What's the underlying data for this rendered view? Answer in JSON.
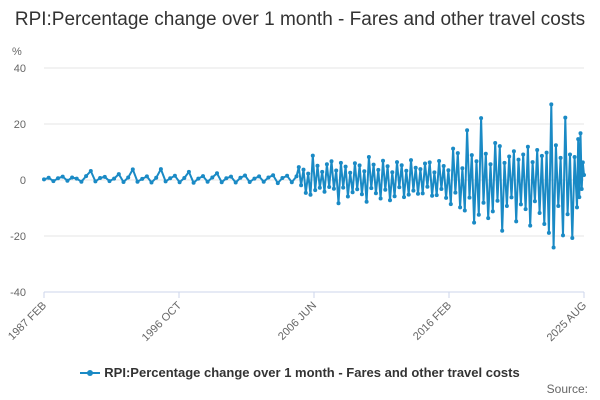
{
  "chart_data": {
    "type": "line",
    "title": "RPI:Percentage change over 1 month - Fares and other travel costs",
    "ylabel": "%",
    "xlabel": "",
    "ylim": [
      -40,
      40
    ],
    "y_ticks": [
      "40",
      "20",
      "0",
      "-20",
      "-40"
    ],
    "x_tick_labels": [
      "1987 FEB",
      "1996 OCT",
      "2006 JUN",
      "2016 FEB",
      "2025 AUG"
    ],
    "xlim": [
      "1987-02",
      "2025-08"
    ],
    "grid": "horizontal",
    "legend_position": "bottom",
    "colors": {
      "series": "#1a8ac5",
      "grid": "#e6e6e6",
      "axis": "#ccd6eb"
    },
    "source_label": "Source:",
    "series": [
      {
        "name": "RPI:Percentage change over 1 month - Fares and other travel costs",
        "points": [
          [
            "1987-02",
            0.2
          ],
          [
            "1987-06",
            0.8
          ],
          [
            "1987-10",
            -0.4
          ],
          [
            "1988-02",
            0.6
          ],
          [
            "1988-06",
            1.2
          ],
          [
            "1988-10",
            -0.3
          ],
          [
            "1989-02",
            0.9
          ],
          [
            "1989-06",
            0.5
          ],
          [
            "1989-10",
            -0.6
          ],
          [
            "1990-02",
            1.4
          ],
          [
            "1990-06",
            3.2
          ],
          [
            "1990-10",
            -0.5
          ],
          [
            "1991-02",
            0.7
          ],
          [
            "1991-06",
            1.1
          ],
          [
            "1991-10",
            -0.4
          ],
          [
            "1992-02",
            0.5
          ],
          [
            "1992-06",
            2.1
          ],
          [
            "1992-10",
            -0.7
          ],
          [
            "1993-02",
            0.9
          ],
          [
            "1993-06",
            3.8
          ],
          [
            "1993-10",
            -0.6
          ],
          [
            "1994-02",
            0.4
          ],
          [
            "1994-06",
            1.3
          ],
          [
            "1994-10",
            -0.9
          ],
          [
            "1995-02",
            0.8
          ],
          [
            "1995-06",
            3.9
          ],
          [
            "1995-10",
            -0.5
          ],
          [
            "1996-02",
            0.6
          ],
          [
            "1996-06",
            1.5
          ],
          [
            "1996-10",
            -0.8
          ],
          [
            "1997-02",
            0.7
          ],
          [
            "1997-06",
            2.9
          ],
          [
            "1997-10",
            -1.0
          ],
          [
            "1998-02",
            0.5
          ],
          [
            "1998-06",
            1.4
          ],
          [
            "1998-10",
            -0.6
          ],
          [
            "1999-02",
            0.9
          ],
          [
            "1999-06",
            2.4
          ],
          [
            "1999-10",
            -0.8
          ],
          [
            "2000-02",
            0.6
          ],
          [
            "2000-06",
            1.2
          ],
          [
            "2000-10",
            -0.9
          ],
          [
            "2001-02",
            0.8
          ],
          [
            "2001-06",
            1.6
          ],
          [
            "2001-10",
            -0.7
          ],
          [
            "2002-02",
            0.5
          ],
          [
            "2002-06",
            1.3
          ],
          [
            "2002-10",
            -0.6
          ],
          [
            "2003-02",
            0.9
          ],
          [
            "2003-06",
            1.7
          ],
          [
            "2003-10",
            -1.1
          ],
          [
            "2004-02",
            0.7
          ],
          [
            "2004-06",
            1.5
          ],
          [
            "2004-10",
            -0.8
          ],
          [
            "2005-02",
            1.3
          ],
          [
            "2005-04",
            4.6
          ],
          [
            "2005-06",
            -1.9
          ],
          [
            "2005-08",
            3.7
          ],
          [
            "2005-10",
            -4.6
          ],
          [
            "2005-12",
            2.3
          ],
          [
            "2006-02",
            -5.3
          ],
          [
            "2006-04",
            8.7
          ],
          [
            "2006-06",
            -3.6
          ],
          [
            "2006-08",
            5.1
          ],
          [
            "2006-10",
            -2.8
          ],
          [
            "2006-12",
            2.9
          ],
          [
            "2007-02",
            -4.2
          ],
          [
            "2007-04",
            5.6
          ],
          [
            "2007-06",
            -2.5
          ],
          [
            "2007-08",
            6.7
          ],
          [
            "2007-10",
            -3.1
          ],
          [
            "2007-12",
            3.4
          ],
          [
            "2008-02",
            -8.3
          ],
          [
            "2008-04",
            6.1
          ],
          [
            "2008-06",
            -2.7
          ],
          [
            "2008-08",
            4.8
          ],
          [
            "2008-10",
            -5.9
          ],
          [
            "2008-12",
            2.6
          ],
          [
            "2009-02",
            -4.4
          ],
          [
            "2009-04",
            6.0
          ],
          [
            "2009-06",
            -3.3
          ],
          [
            "2009-08",
            5.2
          ],
          [
            "2009-10",
            -5.1
          ],
          [
            "2009-12",
            3.1
          ],
          [
            "2010-02",
            -7.8
          ],
          [
            "2010-04",
            8.2
          ],
          [
            "2010-06",
            -2.9
          ],
          [
            "2010-08",
            5.5
          ],
          [
            "2010-10",
            -4.7
          ],
          [
            "2010-12",
            3.6
          ],
          [
            "2011-02",
            -6.6
          ],
          [
            "2011-04",
            6.9
          ],
          [
            "2011-06",
            -3.5
          ],
          [
            "2011-08",
            4.9
          ],
          [
            "2011-10",
            -7.2
          ],
          [
            "2011-12",
            2.8
          ],
          [
            "2012-02",
            -5.8
          ],
          [
            "2012-04",
            6.4
          ],
          [
            "2012-06",
            -2.6
          ],
          [
            "2012-08",
            5.3
          ],
          [
            "2012-10",
            -6.1
          ],
          [
            "2012-12",
            3.3
          ],
          [
            "2013-02",
            -5.2
          ],
          [
            "2013-04",
            7.1
          ],
          [
            "2013-06",
            -3.8
          ],
          [
            "2013-08",
            4.4
          ],
          [
            "2013-10",
            -4.9
          ],
          [
            "2013-12",
            3.9
          ],
          [
            "2014-02",
            -4.8
          ],
          [
            "2014-04",
            5.9
          ],
          [
            "2014-06",
            -2.4
          ],
          [
            "2014-08",
            6.3
          ],
          [
            "2014-10",
            -5.6
          ],
          [
            "2014-12",
            2.7
          ],
          [
            "2015-02",
            -5.4
          ],
          [
            "2015-04",
            6.8
          ],
          [
            "2015-06",
            -3.2
          ],
          [
            "2015-08",
            5.0
          ],
          [
            "2015-10",
            -6.4
          ],
          [
            "2015-12",
            3.5
          ],
          [
            "2016-02",
            -8.6
          ],
          [
            "2016-04",
            11.2
          ],
          [
            "2016-06",
            -4.5
          ],
          [
            "2016-08",
            9.6
          ],
          [
            "2016-10",
            -9.8
          ],
          [
            "2016-12",
            4.2
          ],
          [
            "2017-02",
            -10.9
          ],
          [
            "2017-04",
            17.8
          ],
          [
            "2017-06",
            -6.3
          ],
          [
            "2017-08",
            8.9
          ],
          [
            "2017-10",
            -15.2
          ],
          [
            "2017-12",
            6.7
          ],
          [
            "2018-02",
            -12.4
          ],
          [
            "2018-04",
            22.1
          ],
          [
            "2018-06",
            -8.1
          ],
          [
            "2018-08",
            9.4
          ],
          [
            "2018-10",
            -13.6
          ],
          [
            "2018-12",
            5.6
          ],
          [
            "2019-02",
            -11.2
          ],
          [
            "2019-04",
            13.2
          ],
          [
            "2019-06",
            -7.4
          ],
          [
            "2019-08",
            12.1
          ],
          [
            "2019-10",
            -18.1
          ],
          [
            "2019-12",
            6.1
          ],
          [
            "2020-02",
            -9.3
          ],
          [
            "2020-04",
            8.4
          ],
          [
            "2020-06",
            -6.2
          ],
          [
            "2020-08",
            10.3
          ],
          [
            "2020-10",
            -14.8
          ],
          [
            "2020-12",
            7.3
          ],
          [
            "2021-02",
            -8.7
          ],
          [
            "2021-04",
            9.1
          ],
          [
            "2021-06",
            -10.4
          ],
          [
            "2021-08",
            11.9
          ],
          [
            "2021-10",
            -16.3
          ],
          [
            "2021-12",
            6.4
          ],
          [
            "2022-02",
            -7.6
          ],
          [
            "2022-04",
            10.7
          ],
          [
            "2022-06",
            -11.8
          ],
          [
            "2022-08",
            8.6
          ],
          [
            "2022-10",
            -15.7
          ],
          [
            "2022-12",
            9.8
          ],
          [
            "2023-02",
            -18.9
          ],
          [
            "2023-04",
            27.0
          ],
          [
            "2023-06",
            -24.1
          ],
          [
            "2023-08",
            12.4
          ],
          [
            "2023-10",
            -9.3
          ],
          [
            "2023-12",
            7.9
          ],
          [
            "2024-02",
            -19.8
          ],
          [
            "2024-04",
            22.3
          ],
          [
            "2024-06",
            -12.2
          ],
          [
            "2024-08",
            9.1
          ],
          [
            "2024-10",
            -20.7
          ],
          [
            "2024-12",
            8.2
          ],
          [
            "2025-02",
            -9.8
          ],
          [
            "2025-03",
            14.6
          ],
          [
            "2025-04",
            -6.1
          ],
          [
            "2025-05",
            16.7
          ],
          [
            "2025-06",
            -3.2
          ],
          [
            "2025-07",
            6.3
          ],
          [
            "2025-08",
            1.8
          ]
        ]
      }
    ]
  }
}
